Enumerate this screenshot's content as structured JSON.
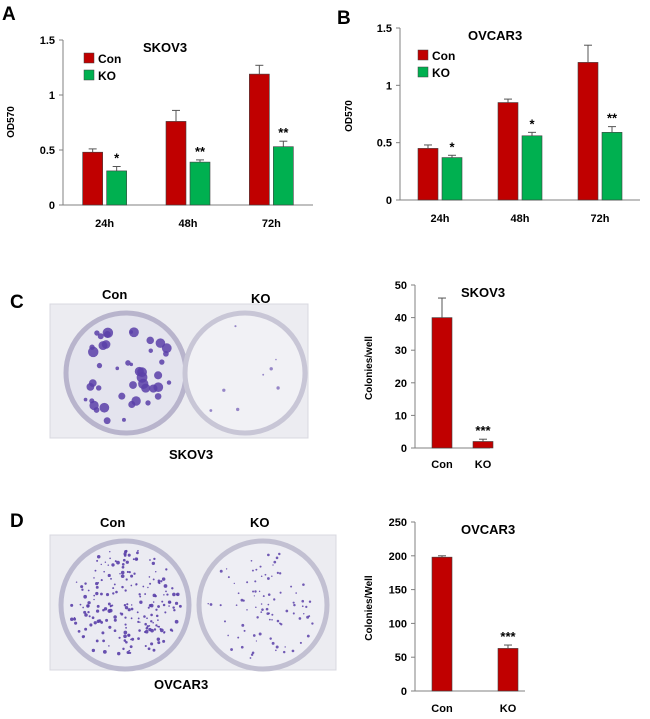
{
  "colors": {
    "con": "#c00000",
    "ko": "#00b050",
    "axis": "#808080",
    "stain": "#5a3fa8"
  },
  "panels": {
    "A": {
      "letter": "A"
    },
    "B": {
      "letter": "B"
    },
    "C": {
      "letter": "C",
      "well_labels": [
        "Con",
        "KO"
      ],
      "cell_line": "SKOV3"
    },
    "D": {
      "letter": "D",
      "well_labels": [
        "Con",
        "KO"
      ],
      "cell_line": "OVCAR3"
    }
  },
  "chart_data": [
    {
      "id": "A",
      "type": "bar",
      "title": "SKOV3",
      "xlabel": "",
      "ylabel": "OD570",
      "ylim": [
        0,
        1.5
      ],
      "yticks": [
        "0",
        "0.5",
        "1",
        "1.5"
      ],
      "categories": [
        "24h",
        "48h",
        "72h"
      ],
      "legend": "top-left",
      "series": [
        {
          "name": "Con",
          "color": "#c00000",
          "values": [
            0.48,
            0.76,
            1.19
          ],
          "errors": [
            0.03,
            0.1,
            0.08
          ]
        },
        {
          "name": "KO",
          "color": "#00b050",
          "values": [
            0.31,
            0.39,
            0.53
          ],
          "errors": [
            0.04,
            0.02,
            0.05
          ]
        }
      ],
      "annotations": [
        "*",
        "**",
        "**"
      ]
    },
    {
      "id": "B",
      "type": "bar",
      "title": "OVCAR3",
      "xlabel": "",
      "ylabel": "OD570",
      "ylim": [
        0,
        1.5
      ],
      "yticks": [
        "0",
        "0.5",
        "1",
        "1.5"
      ],
      "categories": [
        "24h",
        "48h",
        "72h"
      ],
      "legend": "top-left",
      "series": [
        {
          "name": "Con",
          "color": "#c00000",
          "values": [
            0.45,
            0.85,
            1.2
          ],
          "errors": [
            0.03,
            0.03,
            0.15
          ]
        },
        {
          "name": "KO",
          "color": "#00b050",
          "values": [
            0.37,
            0.56,
            0.59
          ],
          "errors": [
            0.02,
            0.03,
            0.05
          ]
        }
      ],
      "annotations": [
        "*",
        "*",
        "**"
      ]
    },
    {
      "id": "C",
      "type": "bar",
      "title": "SKOV3",
      "xlabel": "",
      "ylabel": "Colonies/well",
      "ylim": [
        0,
        50
      ],
      "yticks": [
        "0",
        "10",
        "20",
        "30",
        "40",
        "50"
      ],
      "categories": [
        "Con",
        "KO"
      ],
      "series": [
        {
          "color": "#c00000",
          "values": [
            40,
            2
          ],
          "errors": [
            6,
            0.7
          ]
        }
      ],
      "annotations": [
        "",
        "***"
      ]
    },
    {
      "id": "D",
      "type": "bar",
      "title": "OVCAR3",
      "xlabel": "",
      "ylabel": "Colonies/Well",
      "ylim": [
        0,
        250
      ],
      "yticks": [
        "0",
        "50",
        "100",
        "150",
        "200",
        "250"
      ],
      "categories": [
        "Con",
        "KO"
      ],
      "series": [
        {
          "color": "#c00000",
          "values": [
            198,
            63
          ],
          "errors": [
            2,
            5
          ]
        }
      ],
      "annotations": [
        "",
        "***"
      ]
    }
  ]
}
